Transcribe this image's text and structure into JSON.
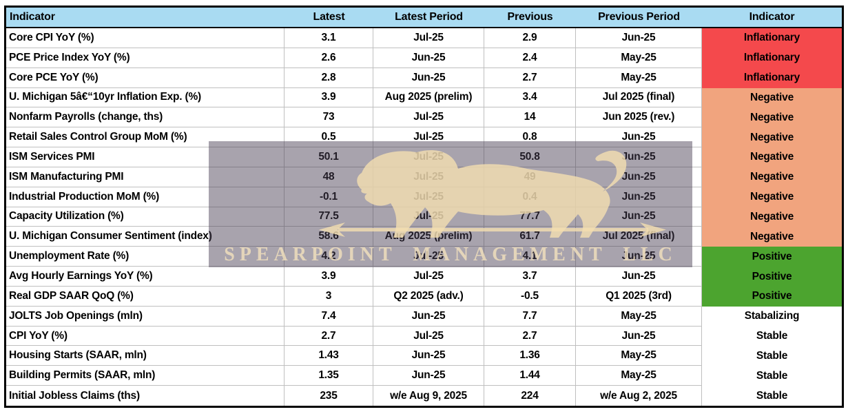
{
  "colors": {
    "header_bg": "#A9DBF2",
    "status_colors": {
      "inflationary": "#F4494C",
      "negative": "#F1A47E",
      "positive": "#4CA42F",
      "neutral": "#FFFFFF"
    },
    "gridline": "#BFBFBF",
    "table_border": "#000000",
    "text": "#000000"
  },
  "watermark": {
    "icon": "lion-with-spear-logo",
    "text": "SPEARPOINT MANAGEMENT LLC",
    "overlay_color": "rgba(70,60,80,0.47)",
    "emblem_color": "#F4DEB0",
    "text_color": "#F4E2BE"
  },
  "chart_data": {
    "type": "table",
    "columns": [
      "Indicator",
      "Latest",
      "Latest Period",
      "Previous",
      "Previous Period",
      "Indicator"
    ],
    "rows": [
      {
        "indicator": "Core CPI YoY (%)",
        "latest": "3.1",
        "latest_period": "Jul-25",
        "previous": "2.9",
        "previous_period": "Jun-25",
        "status": "Inflationary",
        "status_key": "inflationary"
      },
      {
        "indicator": "PCE Price Index YoY (%)",
        "latest": "2.6",
        "latest_period": "Jun-25",
        "previous": "2.4",
        "previous_period": "May-25",
        "status": "Inflationary",
        "status_key": "inflationary"
      },
      {
        "indicator": "Core PCE YoY (%)",
        "latest": "2.8",
        "latest_period": "Jun-25",
        "previous": "2.7",
        "previous_period": "May-25",
        "status": "Inflationary",
        "status_key": "inflationary"
      },
      {
        "indicator": "U. Michigan 5â€“10yr Inflation Exp. (%)",
        "latest": "3.9",
        "latest_period": "Aug 2025 (prelim)",
        "previous": "3.4",
        "previous_period": "Jul 2025 (final)",
        "status": "Negative",
        "status_key": "negative"
      },
      {
        "indicator": "Nonfarm Payrolls (change, ths)",
        "latest": "73",
        "latest_period": "Jul-25",
        "previous": "14",
        "previous_period": "Jun 2025 (rev.)",
        "status": "Negative",
        "status_key": "negative"
      },
      {
        "indicator": "Retail Sales Control Group MoM (%)",
        "latest": "0.5",
        "latest_period": "Jul-25",
        "previous": "0.8",
        "previous_period": "Jun-25",
        "status": "Negative",
        "status_key": "negative"
      },
      {
        "indicator": "ISM Services PMI",
        "latest": "50.1",
        "latest_period": "Jul-25",
        "previous": "50.8",
        "previous_period": "Jun-25",
        "status": "Negative",
        "status_key": "negative"
      },
      {
        "indicator": "ISM Manufacturing PMI",
        "latest": "48",
        "latest_period": "Jul-25",
        "previous": "49",
        "previous_period": "Jun-25",
        "status": "Negative",
        "status_key": "negative"
      },
      {
        "indicator": "Industrial Production MoM (%)",
        "latest": "-0.1",
        "latest_period": "Jul-25",
        "previous": "0.4",
        "previous_period": "Jun-25",
        "status": "Negative",
        "status_key": "negative"
      },
      {
        "indicator": "Capacity Utilization (%)",
        "latest": "77.5",
        "latest_period": "Jul-25",
        "previous": "77.7",
        "previous_period": "Jun-25",
        "status": "Negative",
        "status_key": "negative"
      },
      {
        "indicator": "U. Michigan Consumer Sentiment (index)",
        "latest": "58.6",
        "latest_period": "Aug 2025 (prelim)",
        "previous": "61.7",
        "previous_period": "Jul 2025 (final)",
        "status": "Negative",
        "status_key": "negative"
      },
      {
        "indicator": "Unemployment Rate (%)",
        "latest": "4.2",
        "latest_period": "Jul-25",
        "previous": "4.1",
        "previous_period": "Jun-25",
        "status": "Positive",
        "status_key": "positive"
      },
      {
        "indicator": "Avg Hourly Earnings YoY (%)",
        "latest": "3.9",
        "latest_period": "Jul-25",
        "previous": "3.7",
        "previous_period": "Jun-25",
        "status": "Positive",
        "status_key": "positive"
      },
      {
        "indicator": "Real GDP SAAR QoQ (%)",
        "latest": "3",
        "latest_period": "Q2 2025 (adv.)",
        "previous": "-0.5",
        "previous_period": "Q1 2025 (3rd)",
        "status": "Positive",
        "status_key": "positive"
      },
      {
        "indicator": "JOLTS Job Openings (mln)",
        "latest": "7.4",
        "latest_period": "Jun-25",
        "previous": "7.7",
        "previous_period": "May-25",
        "status": "Stabalizing",
        "status_key": "neutral"
      },
      {
        "indicator": "CPI YoY (%)",
        "latest": "2.7",
        "latest_period": "Jul-25",
        "previous": "2.7",
        "previous_period": "Jun-25",
        "status": "Stable",
        "status_key": "neutral"
      },
      {
        "indicator": "Housing Starts (SAAR, mln)",
        "latest": "1.43",
        "latest_period": "Jun-25",
        "previous": "1.36",
        "previous_period": "May-25",
        "status": "Stable",
        "status_key": "neutral"
      },
      {
        "indicator": "Building Permits (SAAR, mln)",
        "latest": "1.35",
        "latest_period": "Jun-25",
        "previous": "1.44",
        "previous_period": "May-25",
        "status": "Stable",
        "status_key": "neutral"
      },
      {
        "indicator": "Initial Jobless Claims (ths)",
        "latest": "235",
        "latest_period": "w/e Aug 9, 2025",
        "previous": "224",
        "previous_period": "w/e Aug 2, 2025",
        "status": "Stable",
        "status_key": "neutral"
      }
    ]
  }
}
